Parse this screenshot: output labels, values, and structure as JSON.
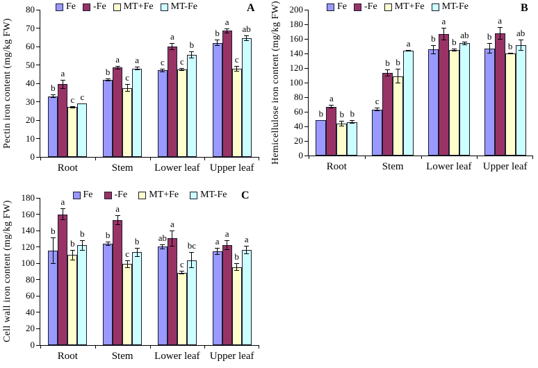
{
  "figure": {
    "background": "#ffffff",
    "panel_labels": [
      "A",
      "B",
      "C"
    ]
  },
  "chart_data": [
    {
      "type": "bar",
      "panel_label": "A",
      "title": "",
      "xlabel": "",
      "ylabel": "Pectin iron content (mg/kg FW)",
      "ylim": [
        0,
        80
      ],
      "yticks": [
        0,
        10,
        20,
        30,
        40,
        50,
        60,
        70,
        80
      ],
      "categories": [
        "Root",
        "Stem",
        "Lower leaf",
        "Upper leaf"
      ],
      "grid": false,
      "error_bars": true,
      "legend_position": "top-inside-left",
      "series": [
        {
          "name": "Fe",
          "color": "#9999FF",
          "values": [
            33,
            42,
            47,
            62
          ],
          "errors": [
            1,
            0.7,
            0.8,
            1.8
          ],
          "sig_letters": [
            "b",
            "b",
            "c",
            "b"
          ]
        },
        {
          "name": "-Fe",
          "color": "#993366",
          "values": [
            39.5,
            48.5,
            60,
            68.5
          ],
          "errors": [
            2.5,
            0.8,
            2,
            1.2
          ],
          "sig_letters": [
            "a",
            "a",
            "a",
            "a"
          ]
        },
        {
          "name": "MT+Fe",
          "color": "#FFFFCC",
          "values": [
            27,
            37.5,
            47.5,
            48
          ],
          "errors": [
            0.5,
            2,
            0.8,
            1.5
          ],
          "sig_letters": [
            "c",
            "c",
            "c",
            "c"
          ]
        },
        {
          "name": "MT-Fe",
          "color": "#CCFFFF",
          "values": [
            29,
            48,
            55.5,
            64.5
          ],
          "errors": [
            0,
            1,
            1.8,
            1.5
          ],
          "sig_letters": [
            "c",
            "a",
            "b",
            "ab"
          ]
        }
      ]
    },
    {
      "type": "bar",
      "panel_label": "B",
      "title": "",
      "xlabel": "",
      "ylabel": "Hemicellulose iron content (mg/kg FW)",
      "ylim": [
        0,
        200
      ],
      "yticks": [
        0,
        20,
        40,
        60,
        80,
        100,
        120,
        140,
        160,
        180,
        200
      ],
      "categories": [
        "Root",
        "Stem",
        "Lower leaf",
        "Upper leaf"
      ],
      "grid": false,
      "error_bars": true,
      "legend_position": "top-inside-left",
      "series": [
        {
          "name": "Fe",
          "color": "#9999FF",
          "values": [
            49,
            63,
            145.5,
            147
          ],
          "errors": [
            0,
            2.5,
            6,
            7
          ],
          "sig_letters": [
            "b",
            "c",
            "b",
            "b"
          ]
        },
        {
          "name": "-Fe",
          "color": "#993366",
          "values": [
            67,
            113.5,
            167,
            168
          ],
          "errors": [
            2.5,
            5,
            8.5,
            8.5
          ],
          "sig_letters": [
            "a",
            "b",
            "a",
            "a"
          ]
        },
        {
          "name": "MT+Fe",
          "color": "#FFFFCC",
          "values": [
            44,
            109,
            145,
            140
          ],
          "errors": [
            4,
            10,
            2,
            1
          ],
          "sig_letters": [
            "b",
            "b",
            "b",
            "b"
          ]
        },
        {
          "name": "MT-Fe",
          "color": "#CCFFFF",
          "values": [
            46,
            143.5,
            154,
            151.5
          ],
          "errors": [
            2.5,
            1,
            2.5,
            8
          ],
          "sig_letters": [
            "b",
            "a",
            "ab",
            "ab"
          ]
        }
      ]
    },
    {
      "type": "bar",
      "panel_label": "C",
      "title": "",
      "xlabel": "",
      "ylabel": "Cell wall iron content (mg/kg FW)",
      "ylim": [
        0,
        180
      ],
      "yticks": [
        0,
        20,
        40,
        60,
        80,
        100,
        120,
        140,
        160,
        180
      ],
      "categories": [
        "Root",
        "Stem",
        "Lower leaf",
        "Upper leaf"
      ],
      "grid": false,
      "error_bars": true,
      "legend_position": "top-inside-center",
      "series": [
        {
          "name": "Fe",
          "color": "#9999FF",
          "values": [
            115.5,
            124,
            120.5,
            114.5
          ],
          "errors": [
            16,
            2.5,
            3,
            4
          ],
          "sig_letters": [
            "b",
            "b",
            "ab",
            "a"
          ]
        },
        {
          "name": "-Fe",
          "color": "#993366",
          "values": [
            160,
            152.5,
            130.5,
            122.5
          ],
          "errors": [
            7.5,
            6,
            10,
            6
          ],
          "sig_letters": [
            "a",
            "a",
            "a",
            "a"
          ]
        },
        {
          "name": "MT+Fe",
          "color": "#FFFFCC",
          "values": [
            110,
            99,
            88.5,
            95.5
          ],
          "errors": [
            6,
            5,
            2,
            5
          ],
          "sig_letters": [
            "b",
            "c",
            "c",
            "b"
          ]
        },
        {
          "name": "MT-Fe",
          "color": "#CCFFFF",
          "values": [
            122,
            113.5,
            104,
            116.5
          ],
          "errors": [
            6.5,
            5.5,
            10,
            5
          ],
          "sig_letters": [
            "b",
            "b",
            "bc",
            "a"
          ]
        }
      ]
    }
  ]
}
